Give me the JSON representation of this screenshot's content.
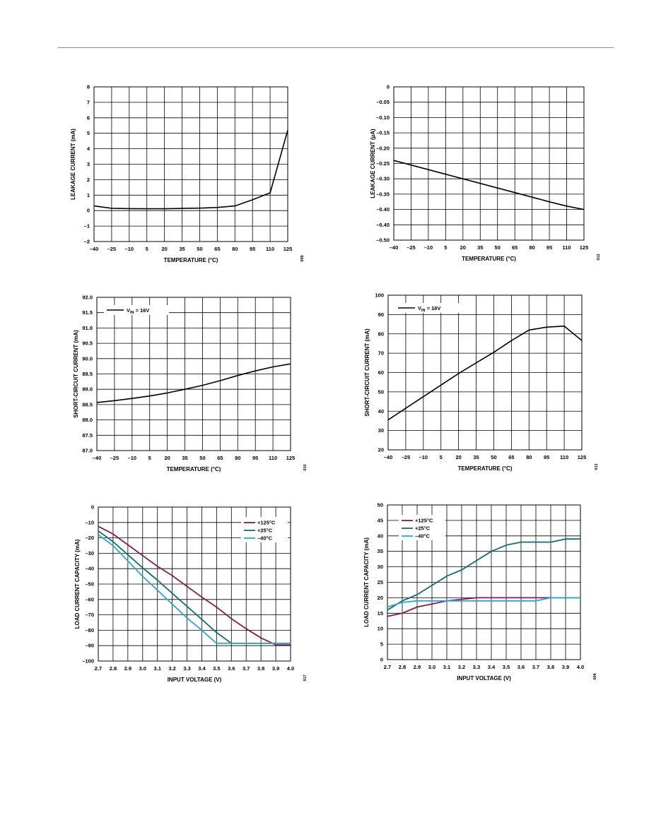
{
  "charts": [
    {
      "type": "line",
      "ylabel": "LEAKAGE CURRENT (mA)",
      "xlabel": "TEMPERATURE (°C)",
      "xticks": [
        "–40",
        "–25",
        "–10",
        "5",
        "20",
        "35",
        "50",
        "65",
        "80",
        "95",
        "110",
        "125"
      ],
      "yticks": [
        "8",
        "7",
        "6",
        "5",
        "4",
        "3",
        "2",
        "1",
        "0",
        "–1",
        "–2"
      ],
      "ylim": [
        -2,
        8
      ],
      "code": "009",
      "series": [
        {
          "name": "",
          "color": "#000000",
          "x": [
            -40,
            -25,
            -10,
            5,
            20,
            35,
            50,
            65,
            80,
            95,
            110,
            125
          ],
          "y": [
            0.3,
            0.15,
            0.13,
            0.12,
            0.12,
            0.14,
            0.16,
            0.2,
            0.3,
            0.7,
            1.15,
            5.2
          ]
        }
      ]
    },
    {
      "type": "line",
      "ylabel": "LEAKAGE CURRENT (µA)",
      "xlabel": "TEMPERATURE (°C)",
      "xticks": [
        "–40",
        "–25",
        "–10",
        "5",
        "20",
        "35",
        "50",
        "65",
        "80",
        "95",
        "110",
        "125"
      ],
      "yticks": [
        "0",
        "–0.05",
        "–0.10",
        "–0.15",
        "–0.20",
        "–0.25",
        "–0.30",
        "–0.35",
        "–0.40",
        "–0.45",
        "–0.50"
      ],
      "ylim": [
        -0.5,
        0
      ],
      "code": "012",
      "series": [
        {
          "name": "",
          "color": "#000000",
          "x": [
            -40,
            -25,
            -10,
            5,
            20,
            35,
            50,
            65,
            80,
            95,
            110,
            125
          ],
          "y": [
            -0.24,
            -0.255,
            -0.27,
            -0.285,
            -0.3,
            -0.315,
            -0.33,
            -0.345,
            -0.36,
            -0.375,
            -0.389,
            -0.4
          ]
        }
      ]
    },
    {
      "type": "line",
      "ylabel": "SHORT-CIRCUIT CURRENT (mA)",
      "xlabel": "TEMPERATURE (°C)",
      "xticks": [
        "–40",
        "–25",
        "–10",
        "5",
        "20",
        "35",
        "50",
        "65",
        "80",
        "95",
        "110",
        "125"
      ],
      "yticks": [
        "92.0",
        "91.5",
        "91.0",
        "90.5",
        "90.0",
        "89.5",
        "89.0",
        "88.5",
        "88.0",
        "87.5",
        "87.0"
      ],
      "ylim": [
        87,
        92
      ],
      "code": "010",
      "legend": [
        "V",
        "IN",
        " = 16V"
      ],
      "series": [
        {
          "name": "",
          "color": "#000000",
          "x": [
            -40,
            -25,
            -10,
            5,
            20,
            35,
            50,
            65,
            80,
            95,
            110,
            125
          ],
          "y": [
            88.57,
            88.63,
            88.7,
            88.78,
            88.88,
            89.0,
            89.13,
            89.28,
            89.45,
            89.6,
            89.73,
            89.83
          ]
        }
      ]
    },
    {
      "type": "line",
      "ylabel": "SHORT-CIRCUIT CURRENT (mA)",
      "xlabel": "TEMPERATURE (°C)",
      "xticks": [
        "–40",
        "–25",
        "–10",
        "5",
        "20",
        "35",
        "50",
        "65",
        "80",
        "95",
        "110",
        "125"
      ],
      "yticks": [
        "100",
        "90",
        "80",
        "70",
        "60",
        "50",
        "40",
        "30",
        "20"
      ],
      "ylim": [
        20,
        100
      ],
      "code": "013",
      "legend": [
        "V",
        "IN",
        " = 16V"
      ],
      "series": [
        {
          "name": "",
          "color": "#000000",
          "x": [
            -40,
            -25,
            -10,
            5,
            20,
            35,
            50,
            65,
            80,
            95,
            110,
            125
          ],
          "y": [
            35.5,
            41.5,
            47.5,
            53.5,
            59.5,
            65,
            70.5,
            76.5,
            82,
            83.5,
            84,
            76.5
          ]
        }
      ]
    },
    {
      "type": "line",
      "ylabel": "LOAD CURRENT CAPACITY (mA)",
      "xlabel": "INPUT VOLTAGE (V)",
      "xticks": [
        "2.7",
        "2.8",
        "2.9",
        "3.0",
        "3.1",
        "3.2",
        "3.3",
        "3.4",
        "3.5",
        "3.6",
        "3.7",
        "3.8",
        "3.9",
        "4.0"
      ],
      "yticks": [
        "0",
        "–10",
        "–20",
        "–30",
        "–40",
        "–50",
        "–60",
        "–70",
        "–80",
        "–90",
        "–100"
      ],
      "ylim": [
        -100,
        0
      ],
      "code": "017",
      "legend_pos": "top-right",
      "series": [
        {
          "name": "+125°C",
          "color": "#8b1a4a",
          "x": [
            2.7,
            2.8,
            2.9,
            3.0,
            3.1,
            3.2,
            3.3,
            3.4,
            3.5,
            3.6,
            3.7,
            3.8,
            3.9,
            4.0
          ],
          "y": [
            -12.5,
            -17.5,
            -24.5,
            -31.5,
            -38.5,
            -44.5,
            -51.5,
            -58.5,
            -65,
            -72.5,
            -79,
            -85,
            -89.5,
            -89.5
          ]
        },
        {
          "name": "+25°C",
          "color": "#0f6e6e",
          "x": [
            2.7,
            2.8,
            2.9,
            3.0,
            3.1,
            3.2,
            3.3,
            3.4,
            3.5,
            3.6,
            3.7,
            3.8,
            3.9,
            4.0
          ],
          "y": [
            -15.5,
            -22.5,
            -31,
            -39.5,
            -47.5,
            -56,
            -64.5,
            -73,
            -81.5,
            -88.5,
            -88.5,
            -88.5,
            -88.5,
            -88.5
          ]
        },
        {
          "name": "–40°C",
          "color": "#2aa7d5",
          "x": [
            2.7,
            2.8,
            2.9,
            3.0,
            3.1,
            3.2,
            3.3,
            3.4,
            3.5,
            3.6,
            3.7,
            3.8,
            3.9,
            4.0
          ],
          "y": [
            -18,
            -25,
            -35,
            -45,
            -54,
            -63,
            -72,
            -80,
            -88.5,
            -88.5,
            -88.5,
            -88.5,
            -88.5,
            -88.5
          ]
        }
      ]
    },
    {
      "type": "line",
      "ylabel": "LOAD CURRENT CAPACITY (mA)",
      "xlabel": "INPUT VOLTAGE (V)",
      "xticks": [
        "2.7",
        "2.8",
        "2.9",
        "3.0",
        "3.1",
        "3.2",
        "3.3",
        "3.4",
        "3.5",
        "3.6",
        "3.7",
        "3.8",
        "3.9",
        "4.0"
      ],
      "yticks": [
        "50",
        "45",
        "40",
        "35",
        "30",
        "25",
        "20",
        "15",
        "10",
        "5",
        "0"
      ],
      "ylim": [
        0,
        50
      ],
      "code": "004",
      "legend_pos": "top-left",
      "series": [
        {
          "name": "+125°C",
          "color": "#8b1a4a",
          "x": [
            2.7,
            2.8,
            2.9,
            3.0,
            3.1,
            3.2,
            3.3,
            3.4,
            3.5,
            3.6,
            3.7,
            3.8,
            3.9,
            4.0
          ],
          "y": [
            14,
            15,
            17,
            18,
            19,
            19.5,
            20,
            20,
            20,
            20,
            20,
            20,
            20,
            20
          ]
        },
        {
          "name": "+25°C",
          "color": "#0f6e6e",
          "x": [
            2.7,
            2.8,
            2.9,
            3.0,
            3.1,
            3.2,
            3.3,
            3.4,
            3.5,
            3.6,
            3.7,
            3.8,
            3.9,
            4.0
          ],
          "y": [
            16,
            19,
            21,
            24,
            27,
            29,
            32,
            35,
            37,
            38,
            38,
            38,
            39,
            39
          ]
        },
        {
          "name": "–40°C",
          "color": "#2aa7d5",
          "x": [
            2.7,
            2.8,
            2.9,
            3.0,
            3.1,
            3.2,
            3.3,
            3.4,
            3.5,
            3.6,
            3.7,
            3.8,
            3.9,
            4.0
          ],
          "y": [
            17,
            18.5,
            19,
            19,
            19,
            19,
            19,
            19,
            19,
            19,
            19,
            20,
            20,
            20
          ]
        }
      ]
    }
  ]
}
